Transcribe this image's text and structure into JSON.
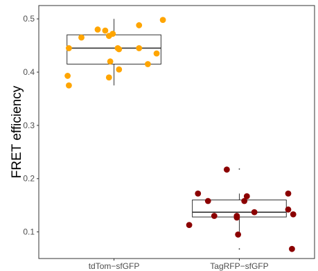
{
  "chart_data": {
    "type": "box-jitter",
    "title": "",
    "xlabel": "",
    "ylabel": "FRET efficiency",
    "ylim": [
      0.05,
      0.525
    ],
    "yticks": [
      0.1,
      0.2,
      0.3,
      0.4,
      0.5
    ],
    "ytick_labels": [
      "0.1",
      "0.2",
      "0.3",
      "0.4",
      "0.5"
    ],
    "categories": [
      "tdTom−sfGFP",
      "TagRFP−sfGFP"
    ],
    "grid": false,
    "legend": "none",
    "box_stroke": "#333333",
    "series": [
      {
        "category": "tdTom−sfGFP",
        "color": "#FFA500",
        "box": {
          "min": 0.375,
          "q1": 0.415,
          "median": 0.445,
          "q3": 0.47,
          "max": 0.5
        },
        "outliers": [],
        "points": [
          {
            "x": -0.37,
            "y": 0.393
          },
          {
            "x": -0.36,
            "y": 0.375
          },
          {
            "x": -0.36,
            "y": 0.445
          },
          {
            "x": -0.26,
            "y": 0.465
          },
          {
            "x": -0.13,
            "y": 0.48
          },
          {
            "x": -0.07,
            "y": 0.478
          },
          {
            "x": -0.04,
            "y": 0.468
          },
          {
            "x": -0.01,
            "y": 0.472
          },
          {
            "x": -0.03,
            "y": 0.42
          },
          {
            "x": -0.04,
            "y": 0.39
          },
          {
            "x": 0.04,
            "y": 0.405
          },
          {
            "x": 0.03,
            "y": 0.445
          },
          {
            "x": 0.04,
            "y": 0.443
          },
          {
            "x": 0.2,
            "y": 0.488
          },
          {
            "x": 0.2,
            "y": 0.445
          },
          {
            "x": 0.27,
            "y": 0.415
          },
          {
            "x": 0.34,
            "y": 0.435
          },
          {
            "x": 0.39,
            "y": 0.498
          }
        ]
      },
      {
        "category": "TagRFP−sfGFP",
        "color": "#8B0000",
        "box": {
          "min": 0.09,
          "q1": 0.128,
          "median": 0.137,
          "q3": 0.16,
          "max": 0.172
        },
        "outliers": [
          0.218,
          0.068
        ],
        "points": [
          {
            "x": -0.4,
            "y": 0.113
          },
          {
            "x": -0.33,
            "y": 0.172
          },
          {
            "x": -0.25,
            "y": 0.158
          },
          {
            "x": -0.2,
            "y": 0.13
          },
          {
            "x": -0.1,
            "y": 0.217
          },
          {
            "x": -0.02,
            "y": 0.13
          },
          {
            "x": -0.02,
            "y": 0.127
          },
          {
            "x": -0.01,
            "y": 0.095
          },
          {
            "x": 0.04,
            "y": 0.158
          },
          {
            "x": 0.06,
            "y": 0.167
          },
          {
            "x": 0.12,
            "y": 0.137
          },
          {
            "x": 0.39,
            "y": 0.172
          },
          {
            "x": 0.39,
            "y": 0.142
          },
          {
            "x": 0.43,
            "y": 0.133
          },
          {
            "x": 0.42,
            "y": 0.068
          }
        ]
      }
    ]
  }
}
